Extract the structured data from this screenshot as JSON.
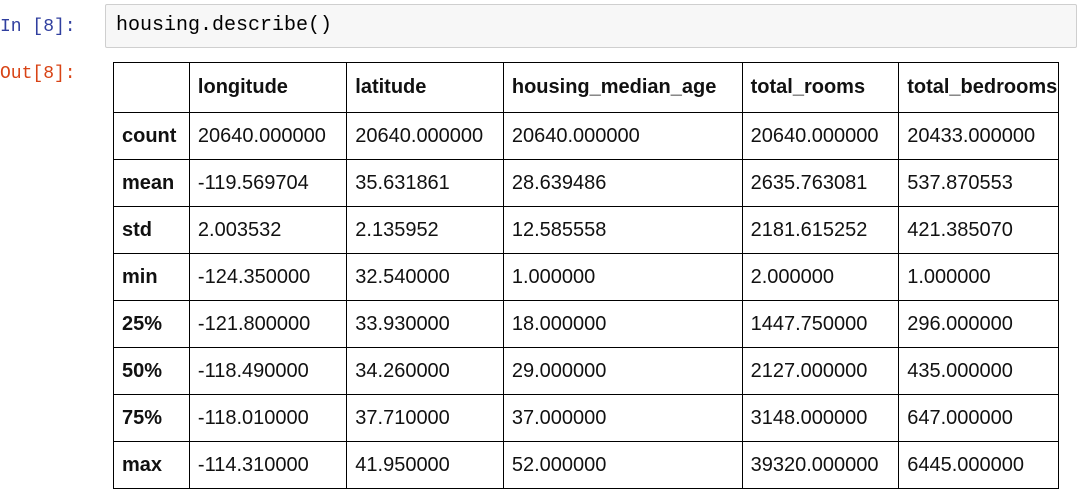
{
  "input": {
    "prompt": "In [8]:",
    "code": "housing.describe()"
  },
  "output": {
    "prompt": "Out[8]:"
  },
  "table": {
    "columns": [
      "longitude",
      "latitude",
      "housing_median_age",
      "total_rooms",
      "total_bedrooms"
    ],
    "rows": [
      {
        "label": "count",
        "values": [
          "20640.000000",
          "20640.000000",
          "20640.000000",
          "20640.000000",
          "20433.000000"
        ]
      },
      {
        "label": "mean",
        "values": [
          "-119.569704",
          "35.631861",
          "28.639486",
          "2635.763081",
          "537.870553"
        ]
      },
      {
        "label": "std",
        "values": [
          "2.003532",
          "2.135952",
          "12.585558",
          "2181.615252",
          "421.385070"
        ]
      },
      {
        "label": "min",
        "values": [
          "-124.350000",
          "32.540000",
          "1.000000",
          "2.000000",
          "1.000000"
        ]
      },
      {
        "label": "25%",
        "values": [
          "-121.800000",
          "33.930000",
          "18.000000",
          "1447.750000",
          "296.000000"
        ]
      },
      {
        "label": "50%",
        "values": [
          "-118.490000",
          "34.260000",
          "29.000000",
          "2127.000000",
          "435.000000"
        ]
      },
      {
        "label": "75%",
        "values": [
          "-118.010000",
          "37.710000",
          "37.000000",
          "3148.000000",
          "647.000000"
        ]
      },
      {
        "label": "max",
        "values": [
          "-114.310000",
          "41.950000",
          "52.000000",
          "39320.000000",
          "6445.000000"
        ]
      }
    ]
  }
}
